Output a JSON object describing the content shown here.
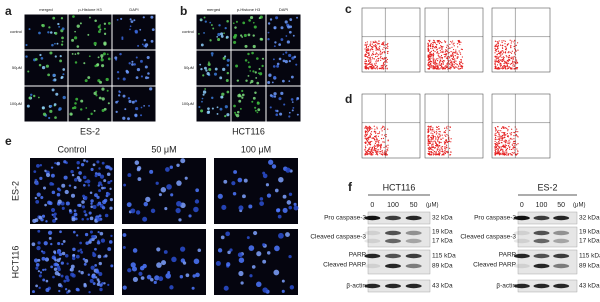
{
  "panel_a": {
    "letter": "a",
    "columns": [
      "merged",
      "p-Histone H3",
      "DAPI"
    ],
    "rows": [
      "control",
      "50μM",
      "100μM"
    ],
    "caption": "ES-2"
  },
  "panel_b": {
    "letter": "b",
    "columns": [
      "merged",
      "p-Histone H3",
      "DAPI"
    ],
    "rows": [
      "control",
      "50μM",
      "100μM"
    ],
    "caption": "HCT116"
  },
  "panel_c": {
    "letter": "c"
  },
  "panel_d": {
    "letter": "d"
  },
  "panel_e": {
    "letter": "e",
    "columns": [
      "Control",
      "50 μM",
      "100 μM"
    ],
    "rows": [
      "ES-2",
      "HCT116"
    ]
  },
  "panel_f": {
    "letter": "f",
    "blots": [
      {
        "cell_line": "HCT116",
        "unit": "(μM)",
        "lanes": [
          0,
          100,
          50
        ],
        "proteins": [
          "Pro caspase-3",
          "Cleaved caspase-3",
          "PARP",
          "Cleaved PARP",
          "β-actin"
        ],
        "sizes": [
          "32 kDa",
          "19 kDa",
          "17 kDa",
          "115 kDa",
          "89 kDa",
          "43 kDa"
        ]
      },
      {
        "cell_line": "ES-2",
        "unit": "(μM)",
        "lanes": [
          0,
          100,
          50
        ],
        "proteins": [
          "Pro caspase-3",
          "Cleaved caspase-3",
          "PARP",
          "Cleaved PARP",
          "β-actin"
        ],
        "sizes": [
          "32 kDa",
          "19 kDa",
          "17 kDa",
          "115 kDa",
          "89 kDa",
          "43 kDa"
        ]
      }
    ]
  }
}
